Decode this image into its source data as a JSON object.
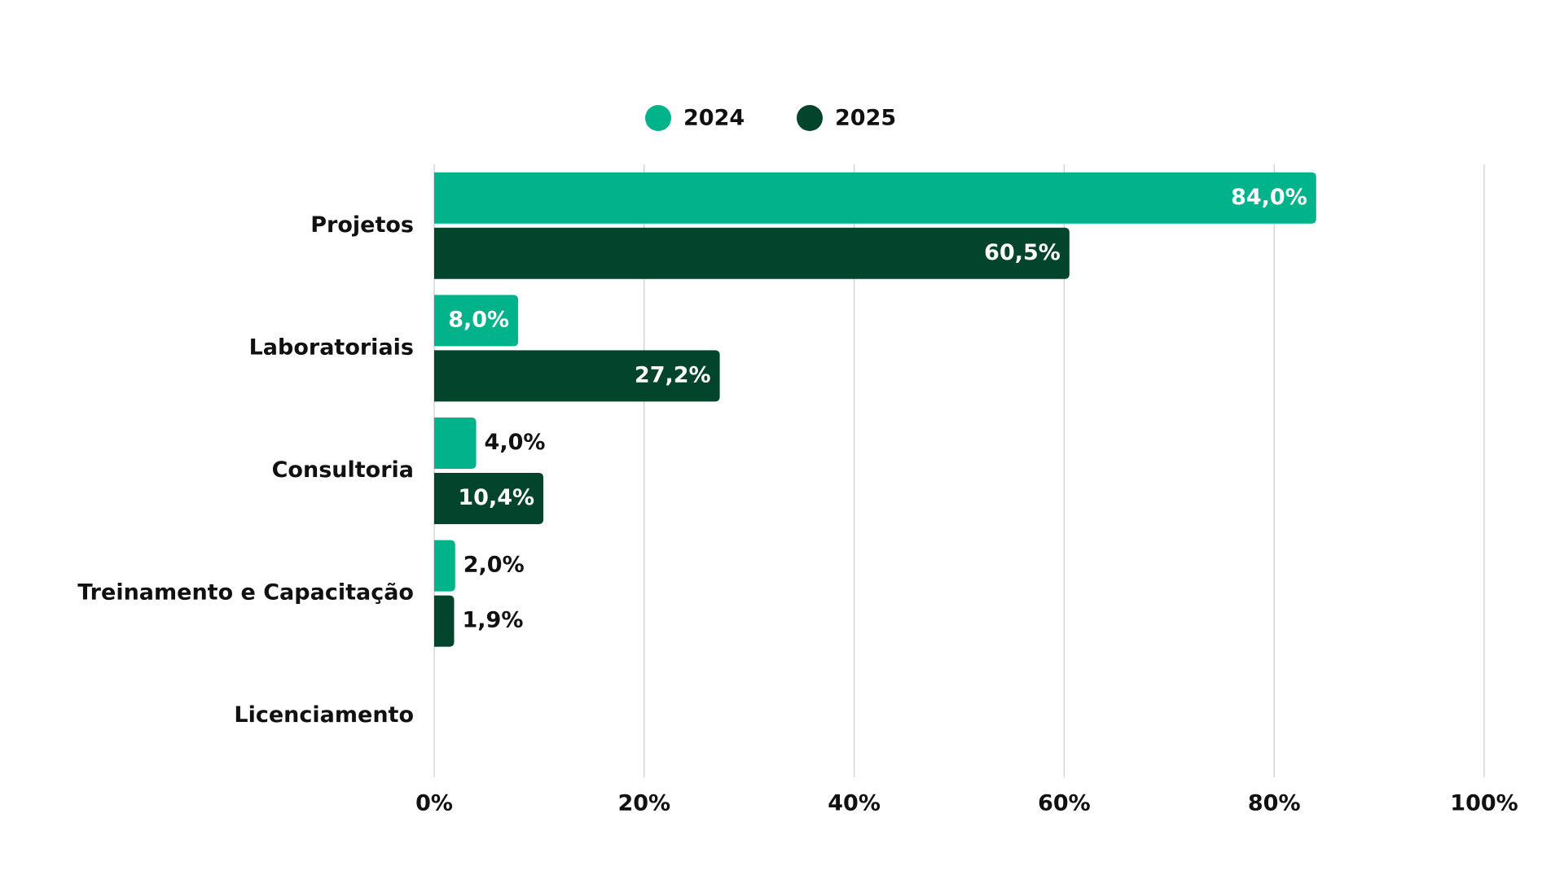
{
  "chart_data": {
    "type": "bar",
    "orientation": "horizontal",
    "categories": [
      "Projetos",
      "Laboratoriais",
      "Consultoria",
      "Treinamento e Capacitação",
      "Licenciamento"
    ],
    "series": [
      {
        "name": "2024",
        "color": "#00b38b",
        "values": [
          84.0,
          8.0,
          4.0,
          2.0,
          null
        ],
        "value_labels": [
          "84,0%",
          "8,0%",
          "4,0%",
          "2,0%",
          null
        ]
      },
      {
        "name": "2025",
        "color": "#03442c",
        "values": [
          60.5,
          27.2,
          10.4,
          1.9,
          null
        ],
        "value_labels": [
          "60,5%",
          "27,2%",
          "10,4%",
          "1,9%",
          null
        ]
      }
    ],
    "xlim": [
      0,
      100
    ],
    "xticks": [
      {
        "value": 0,
        "label": "0%"
      },
      {
        "value": 20,
        "label": "20%"
      },
      {
        "value": 40,
        "label": "40%"
      },
      {
        "value": 60,
        "label": "60%"
      },
      {
        "value": 80,
        "label": "80%"
      },
      {
        "value": 100,
        "label": "100%"
      }
    ],
    "grid": true,
    "legend": "top"
  }
}
